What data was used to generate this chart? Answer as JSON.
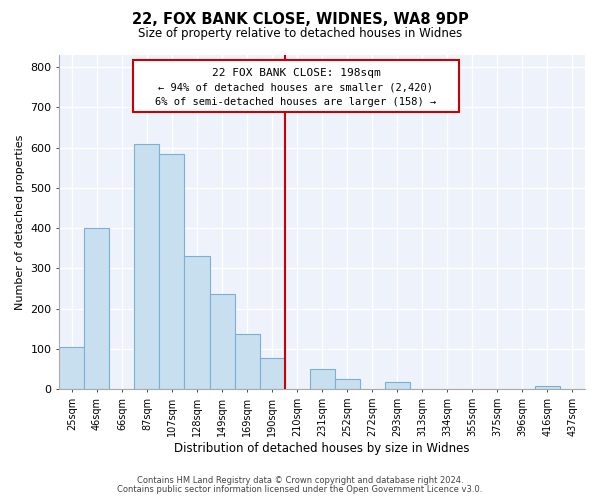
{
  "title": "22, FOX BANK CLOSE, WIDNES, WA8 9DP",
  "subtitle": "Size of property relative to detached houses in Widnes",
  "xlabel": "Distribution of detached houses by size in Widnes",
  "ylabel": "Number of detached properties",
  "bar_labels": [
    "25sqm",
    "46sqm",
    "66sqm",
    "87sqm",
    "107sqm",
    "128sqm",
    "149sqm",
    "169sqm",
    "190sqm",
    "210sqm",
    "231sqm",
    "252sqm",
    "272sqm",
    "293sqm",
    "313sqm",
    "334sqm",
    "355sqm",
    "375sqm",
    "396sqm",
    "416sqm",
    "437sqm"
  ],
  "bar_values": [
    105,
    400,
    0,
    610,
    585,
    330,
    237,
    137,
    78,
    0,
    50,
    25,
    0,
    17,
    0,
    0,
    0,
    0,
    0,
    8,
    0
  ],
  "bar_color": "#c8dff0",
  "bar_edge_color": "#7bafd4",
  "vline_x": 9.0,
  "vline_color": "#cc0000",
  "ylim": [
    0,
    830
  ],
  "yticks": [
    0,
    100,
    200,
    300,
    400,
    500,
    600,
    700,
    800
  ],
  "annotation_title": "22 FOX BANK CLOSE: 198sqm",
  "annotation_line1": "← 94% of detached houses are smaller (2,420)",
  "annotation_line2": "6% of semi-detached houses are larger (158) →",
  "footnote1": "Contains HM Land Registry data © Crown copyright and database right 2024.",
  "footnote2": "Contains public sector information licensed under the Open Government Licence v3.0.",
  "bg_color": "#ffffff",
  "plot_bg_color": "#eef2fb",
  "grid_color": "#ffffff"
}
